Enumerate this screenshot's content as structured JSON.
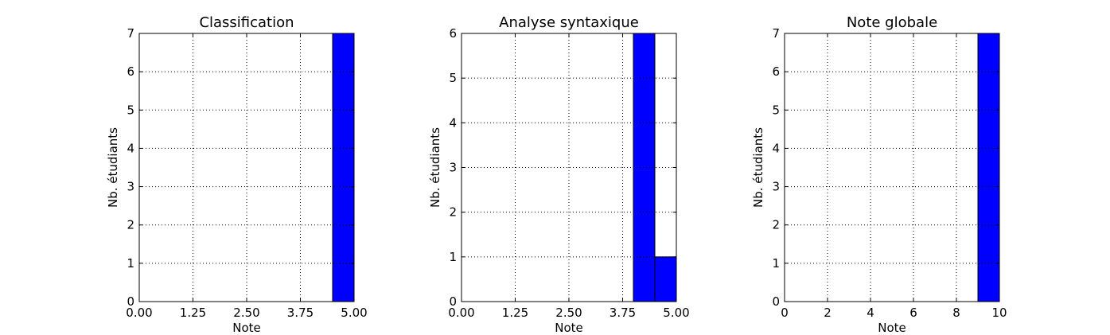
{
  "chart_data": [
    {
      "type": "bar",
      "title": "Classification",
      "xlabel": "Note",
      "ylabel": "Nb. étudiants",
      "xlim": [
        0,
        5
      ],
      "ylim": [
        0,
        7
      ],
      "xticks": [
        0,
        1.25,
        2.5,
        3.75,
        5
      ],
      "xtick_labels": [
        "0.00",
        "1.25",
        "2.50",
        "3.75",
        "5.00"
      ],
      "yticks": [
        0,
        1,
        2,
        3,
        4,
        5,
        6,
        7
      ],
      "ytick_labels": [
        "0",
        "1",
        "2",
        "3",
        "4",
        "5",
        "6",
        "7"
      ],
      "grid": true,
      "bins": [
        {
          "x0": 0,
          "x1": 0.5,
          "count": 0
        },
        {
          "x0": 4.5,
          "x1": 5,
          "count": 7
        }
      ]
    },
    {
      "type": "bar",
      "title": "Analyse syntaxique",
      "xlabel": "Note",
      "ylabel": "Nb. étudiants",
      "xlim": [
        0,
        5
      ],
      "ylim": [
        0,
        6
      ],
      "xticks": [
        0,
        1.25,
        2.5,
        3.75,
        5
      ],
      "xtick_labels": [
        "0.00",
        "1.25",
        "2.50",
        "3.75",
        "5.00"
      ],
      "yticks": [
        0,
        1,
        2,
        3,
        4,
        5,
        6
      ],
      "ytick_labels": [
        "0",
        "1",
        "2",
        "3",
        "4",
        "5",
        "6"
      ],
      "grid": true,
      "bins": [
        {
          "x0": 0,
          "x1": 0.5,
          "count": 0
        },
        {
          "x0": 4,
          "x1": 4.5,
          "count": 6
        },
        {
          "x0": 4.5,
          "x1": 5,
          "count": 1
        }
      ]
    },
    {
      "type": "bar",
      "title": "Note globale",
      "xlabel": "Note",
      "ylabel": "Nb. étudiants",
      "xlim": [
        0,
        10
      ],
      "ylim": [
        0,
        7
      ],
      "xticks": [
        0,
        2,
        4,
        6,
        8,
        10
      ],
      "xtick_labels": [
        "0",
        "2",
        "4",
        "6",
        "8",
        "10"
      ],
      "yticks": [
        0,
        1,
        2,
        3,
        4,
        5,
        6,
        7
      ],
      "ytick_labels": [
        "0",
        "1",
        "2",
        "3",
        "4",
        "5",
        "6",
        "7"
      ],
      "grid": true,
      "bins": [
        {
          "x0": 0,
          "x1": 1,
          "count": 0
        },
        {
          "x0": 9,
          "x1": 10,
          "count": 7
        }
      ]
    }
  ],
  "colors": {
    "bar": "#0000ff",
    "edge": "#000000"
  }
}
